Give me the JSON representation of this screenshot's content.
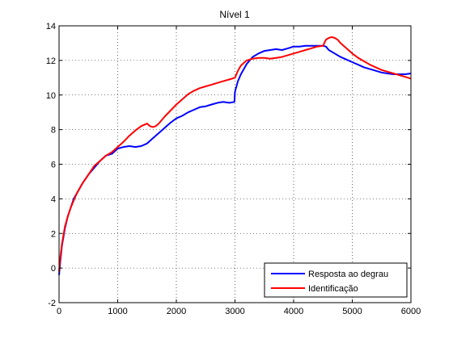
{
  "chart_data": {
    "type": "line",
    "title": "Nível 1",
    "xlabel": "",
    "ylabel": "",
    "xlim": [
      0,
      6000
    ],
    "ylim": [
      -2,
      14
    ],
    "xticks": [
      0,
      1000,
      2000,
      3000,
      4000,
      5000,
      6000
    ],
    "yticks": [
      -2,
      0,
      2,
      4,
      6,
      8,
      10,
      12,
      14
    ],
    "grid": true,
    "legend_position": "bottom-right",
    "series": [
      {
        "name": "Resposta ao degrau",
        "color": "#0000ff",
        "x": [
          0,
          25,
          50,
          100,
          150,
          200,
          250,
          300,
          400,
          500,
          600,
          700,
          800,
          900,
          1000,
          1100,
          1200,
          1300,
          1400,
          1500,
          1600,
          1700,
          1800,
          1900,
          2000,
          2100,
          2200,
          2300,
          2400,
          2500,
          2600,
          2700,
          2800,
          2900,
          2990,
          3000,
          3050,
          3100,
          3200,
          3300,
          3400,
          3500,
          3600,
          3700,
          3800,
          3900,
          4000,
          4100,
          4200,
          4300,
          4400,
          4500,
          4550,
          4600,
          4700,
          4800,
          4900,
          5000,
          5100,
          5200,
          5300,
          5400,
          5500,
          5600,
          5700,
          5800,
          5900,
          6000
        ],
        "y": [
          -0.4,
          0.5,
          1.3,
          2.3,
          3.0,
          3.5,
          4.0,
          4.3,
          4.9,
          5.4,
          5.8,
          6.2,
          6.5,
          6.6,
          6.9,
          7.0,
          7.05,
          7.0,
          7.05,
          7.2,
          7.5,
          7.8,
          8.1,
          8.4,
          8.65,
          8.8,
          9.0,
          9.15,
          9.3,
          9.35,
          9.45,
          9.55,
          9.6,
          9.55,
          9.6,
          10.2,
          10.8,
          11.2,
          11.8,
          12.2,
          12.4,
          12.55,
          12.6,
          12.65,
          12.6,
          12.7,
          12.8,
          12.8,
          12.85,
          12.85,
          12.85,
          12.85,
          12.8,
          12.6,
          12.4,
          12.2,
          12.05,
          11.9,
          11.75,
          11.6,
          11.5,
          11.4,
          11.3,
          11.25,
          11.2,
          11.2,
          11.2,
          11.25
        ]
      },
      {
        "name": "Identificação",
        "color": "#ff0000",
        "x": [
          0,
          25,
          50,
          100,
          150,
          200,
          250,
          300,
          400,
          500,
          600,
          700,
          800,
          900,
          1000,
          1100,
          1200,
          1300,
          1400,
          1500,
          1550,
          1600,
          1650,
          1700,
          1800,
          1900,
          2000,
          2100,
          2200,
          2300,
          2400,
          2500,
          2600,
          2700,
          2800,
          2900,
          3000,
          3050,
          3100,
          3200,
          3300,
          3400,
          3500,
          3600,
          3700,
          3800,
          3900,
          4000,
          4100,
          4200,
          4300,
          4400,
          4500,
          4550,
          4600,
          4650,
          4700,
          4750,
          4800,
          4900,
          5000,
          5100,
          5200,
          5300,
          5400,
          5500,
          5600,
          5700,
          5800,
          5900,
          6000
        ],
        "y": [
          -0.2,
          0.7,
          1.4,
          2.4,
          3.0,
          3.5,
          3.9,
          4.3,
          4.9,
          5.4,
          5.9,
          6.2,
          6.5,
          6.7,
          7.0,
          7.3,
          7.65,
          7.95,
          8.2,
          8.35,
          8.2,
          8.15,
          8.2,
          8.35,
          8.75,
          9.1,
          9.45,
          9.75,
          10.05,
          10.25,
          10.4,
          10.5,
          10.6,
          10.7,
          10.8,
          10.9,
          11.0,
          11.4,
          11.7,
          12.0,
          12.1,
          12.15,
          12.15,
          12.1,
          12.15,
          12.2,
          12.3,
          12.4,
          12.5,
          12.6,
          12.7,
          12.8,
          12.85,
          13.2,
          13.3,
          13.35,
          13.3,
          13.2,
          13.0,
          12.7,
          12.4,
          12.15,
          11.95,
          11.75,
          11.6,
          11.45,
          11.35,
          11.25,
          11.15,
          11.05,
          10.95
        ]
      }
    ]
  }
}
